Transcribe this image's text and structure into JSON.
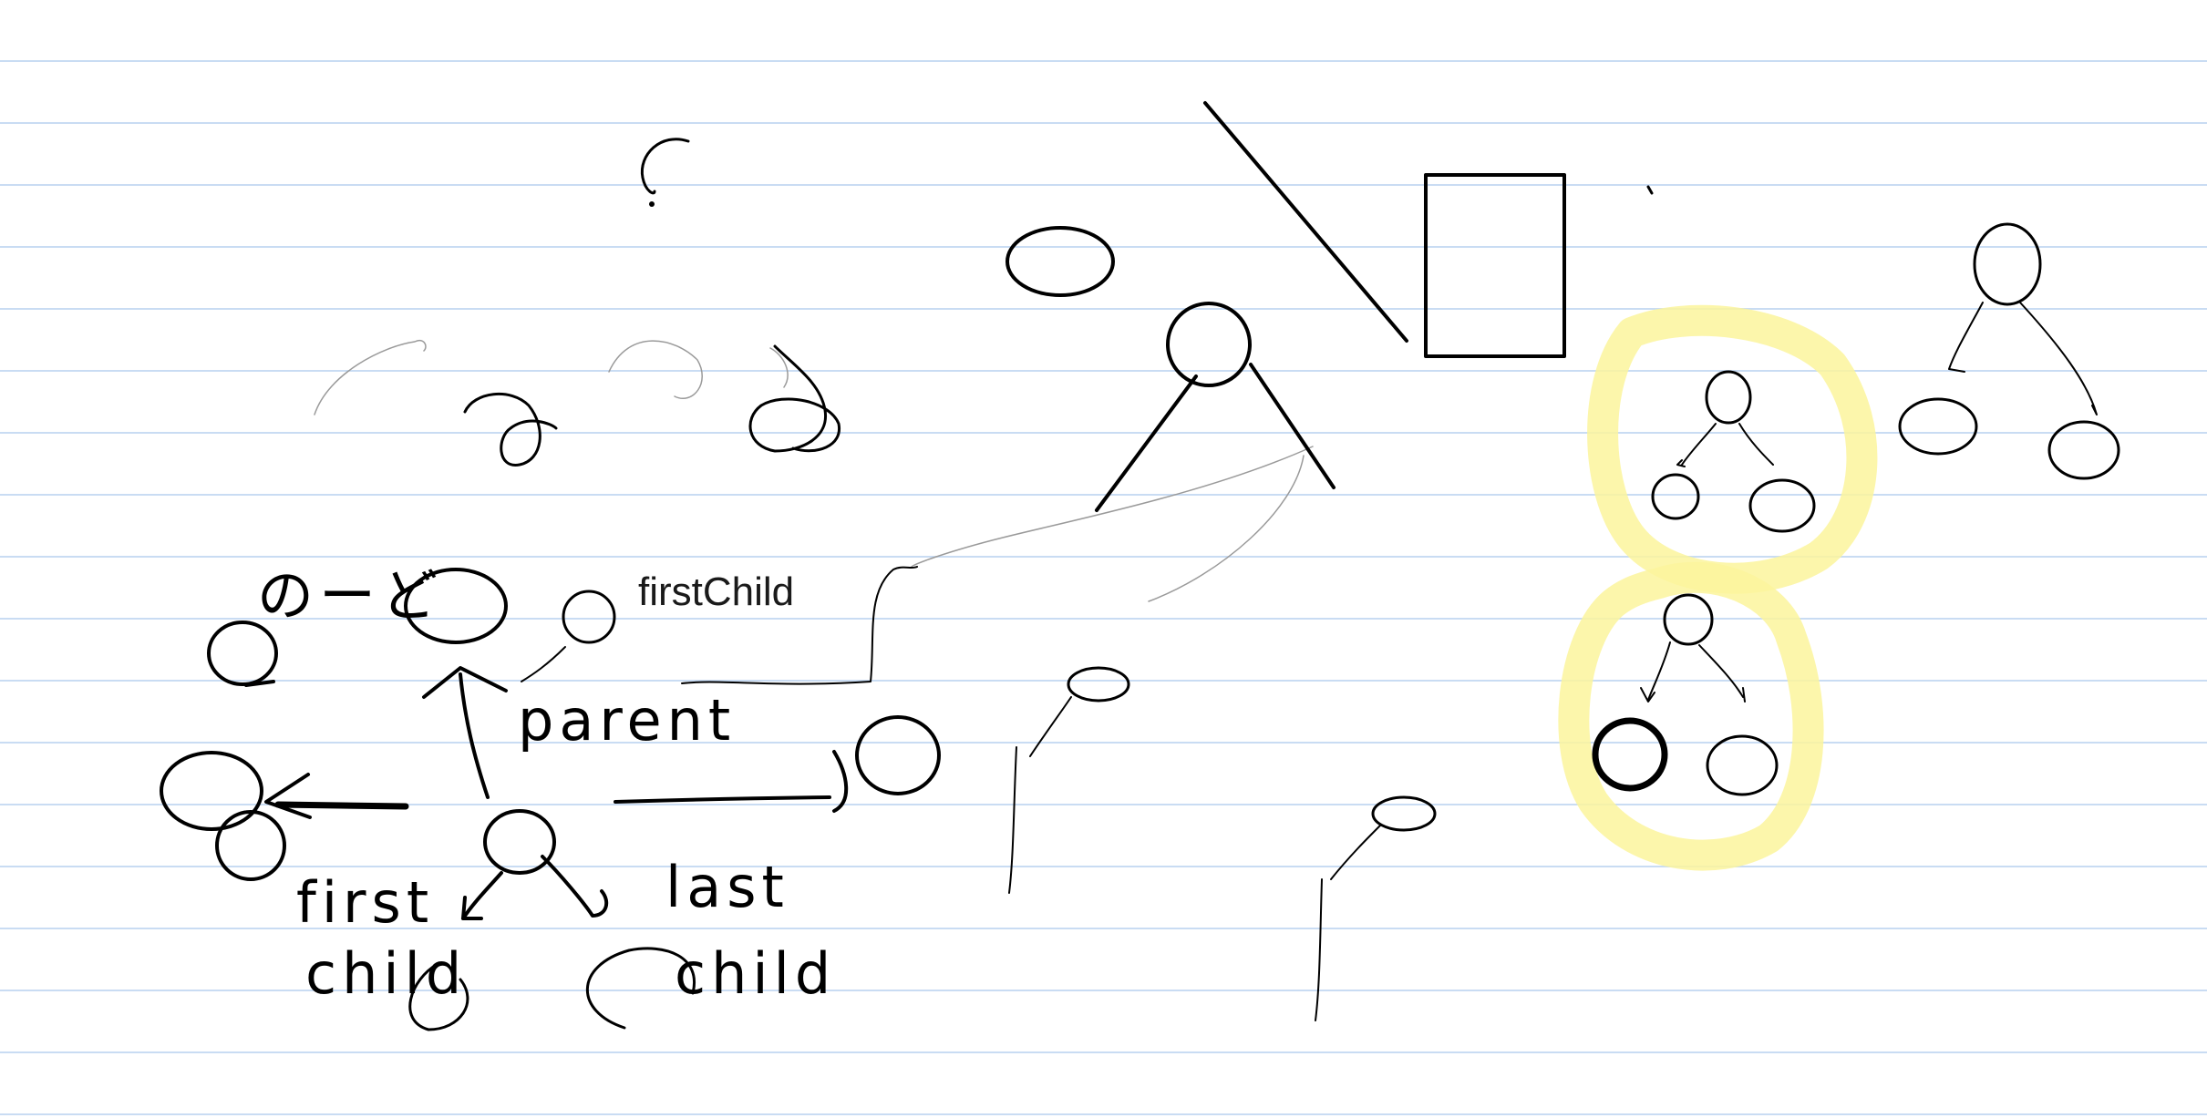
{
  "app": {
    "kind": "handwriting notebook canvas"
  },
  "typed_text": {
    "first_child": "firstChild"
  },
  "handwriting": {
    "node_label": "のーど",
    "parent": "parent",
    "first_child_line1": "first",
    "first_child_line2": "child",
    "last_child_line1": "last",
    "last_child_line2": "child",
    "question": "?"
  },
  "colors": {
    "ruled_line": "#c9dcf3",
    "ink": "#000000",
    "faint_ink": "#9a9a9a",
    "highlighter": "#fbf59c"
  }
}
